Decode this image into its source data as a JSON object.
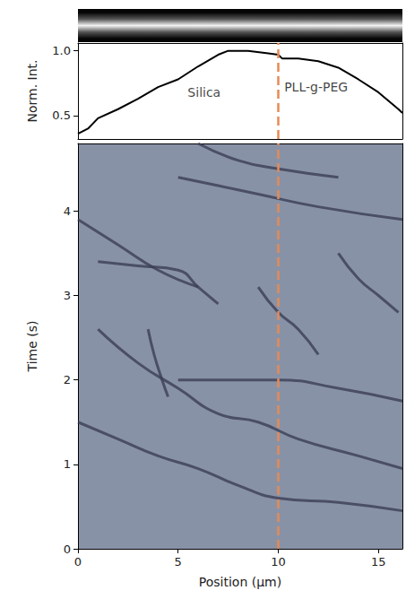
{
  "chart_data": [
    {
      "type": "line",
      "y_label": "Norm. Int.",
      "xlim": [
        0,
        16.2
      ],
      "ylim": [
        0.32,
        1.06
      ],
      "yticks": [
        {
          "value": 0.5,
          "label": "0.5"
        },
        {
          "value": 1,
          "label": "1.0"
        }
      ],
      "tick_labels": "y",
      "grid": false,
      "color": "#000000",
      "series": [
        {
          "x": [
            0,
            0.5,
            1,
            2,
            3,
            4,
            5,
            6,
            7,
            7.5,
            8.5,
            9.5,
            10,
            10.2,
            11,
            12,
            13,
            14,
            15,
            16,
            16.2
          ],
          "values": [
            0.36,
            0.4,
            0.48,
            0.55,
            0.63,
            0.72,
            0.78,
            0.88,
            0.97,
            1.0,
            1.0,
            0.98,
            0.97,
            0.94,
            0.94,
            0.92,
            0.87,
            0.78,
            0.68,
            0.55,
            0.52
          ]
        }
      ],
      "annotations": [
        {
          "text": "Silica",
          "x": 6.3,
          "y": 0.68
        },
        {
          "text": "PLL-g-PEG",
          "x": 10.3,
          "y": 0.72
        }
      ],
      "vline": {
        "x": 10,
        "color": "#e58a55",
        "line_style": "dashed"
      }
    },
    {
      "type": "line",
      "x_label": "Position (µm)",
      "y_label": "Time (s)",
      "xlim": [
        0,
        16.2
      ],
      "ylim": [
        0,
        4.8
      ],
      "xticks": [
        0,
        5,
        10,
        15
      ],
      "yticks": [
        0,
        1,
        2,
        3,
        4
      ],
      "grid": false,
      "color": "#3b3f56",
      "series": [
        {
          "x": [
            0,
            2,
            4,
            6,
            8,
            10,
            13,
            16.2
          ],
          "values": [
            1.5,
            1.3,
            1.1,
            0.95,
            0.75,
            0.6,
            0.55,
            0.45
          ]
        },
        {
          "x": [
            1,
            3,
            5,
            7,
            9,
            11,
            14,
            16.2
          ],
          "values": [
            2.6,
            2.2,
            1.9,
            1.6,
            1.5,
            1.3,
            1.1,
            0.95
          ]
        },
        {
          "x": [
            3.5,
            3.8,
            4.2,
            4.5
          ],
          "values": [
            2.6,
            2.3,
            2.0,
            1.8
          ]
        },
        {
          "x": [
            5,
            7,
            10,
            13,
            16.2
          ],
          "values": [
            2.0,
            2.0,
            2.0,
            1.9,
            1.75
          ]
        },
        {
          "x": [
            1,
            3,
            5,
            6,
            7
          ],
          "values": [
            3.4,
            3.35,
            3.3,
            3.1,
            2.9
          ]
        },
        {
          "x": [
            0,
            2,
            4,
            6
          ],
          "values": [
            3.9,
            3.6,
            3.3,
            3.1
          ]
        },
        {
          "x": [
            5,
            7,
            9,
            12,
            16.2
          ],
          "values": [
            4.4,
            4.3,
            4.2,
            4.05,
            3.9
          ]
        },
        {
          "x": [
            6,
            8,
            10,
            13
          ],
          "values": [
            4.8,
            4.6,
            4.5,
            4.4
          ]
        },
        {
          "x": [
            9,
            10,
            11,
            12
          ],
          "values": [
            3.1,
            2.8,
            2.6,
            2.3
          ]
        },
        {
          "x": [
            13,
            14,
            15,
            16
          ],
          "values": [
            3.5,
            3.2,
            3.0,
            2.8
          ]
        }
      ],
      "vline": {
        "x": 10,
        "color": "#e58a55",
        "line_style": "dashed"
      }
    }
  ]
}
